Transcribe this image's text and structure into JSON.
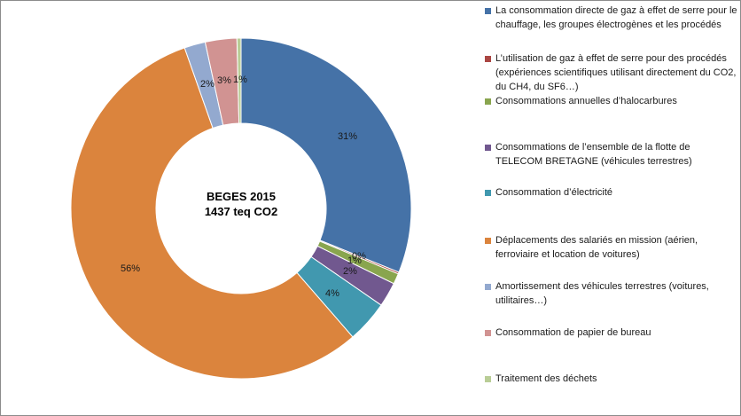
{
  "chart_data": {
    "type": "donut",
    "center_lines": [
      "BEGES 2015",
      "1437 teq CO2"
    ],
    "categories": [
      "La consommation directe de gaz à effet de serre pour le chauffage, les groupes électrogènes et les procédés",
      "L’utilisation de gaz à effet de serre pour des procédés (expériences scientifiques utilisant directement  du CO2, du CH4, du SF6…)",
      "Consommations annuelles d’halocarbures",
      "Consommations de l’ensemble de la flotte de TELECOM BRETAGNE  (véhicules terrestres)",
      "Consommation d’électricité",
      "Déplacements des salariés en mission (aérien, ferroviaire et location de voitures)",
      "Amortissement des véhicules terrestres (voitures, utilitaires…)",
      "Consommation de papier de bureau",
      "Traitement des déchets"
    ],
    "values": [
      31,
      0,
      1,
      2,
      4,
      56,
      2,
      3,
      1
    ],
    "data_labels": [
      "31%",
      "0%",
      "1%",
      "2%",
      "4%",
      "56%",
      "2%",
      "3%",
      "1%"
    ],
    "colors": [
      "#4572A7",
      "#AA4643",
      "#89A54E",
      "#71588F",
      "#4198AF",
      "#DB843D",
      "#93A9CF",
      "#D19392",
      "#B9CD96"
    ],
    "legend_position": "right"
  }
}
